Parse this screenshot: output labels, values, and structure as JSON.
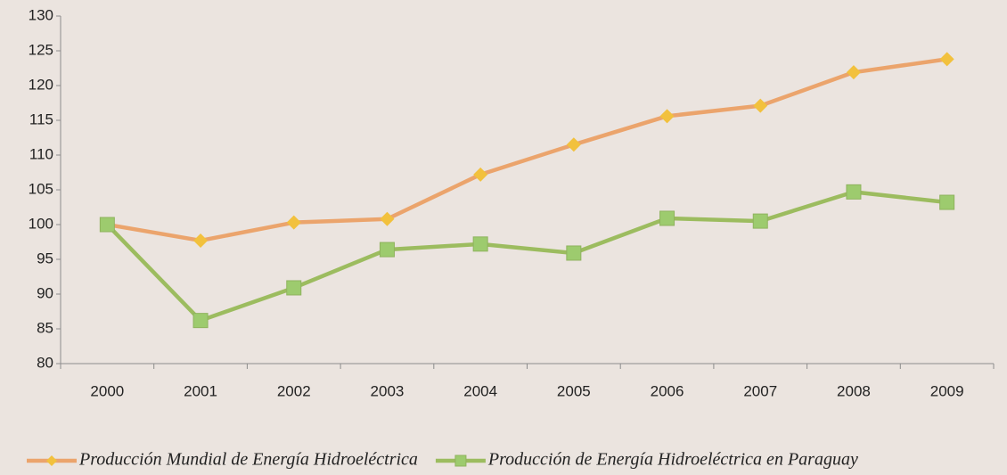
{
  "chart_data": {
    "type": "line",
    "categories": [
      "2000",
      "2001",
      "2002",
      "2003",
      "2004",
      "2005",
      "2006",
      "2007",
      "2008",
      "2009"
    ],
    "series": [
      {
        "name": "Producción Mundial de Energía Hidroeléctrica",
        "color": "#eba46c",
        "marker_color": "#f2c13d",
        "marker": "diamond",
        "values": [
          100,
          97.7,
          100.3,
          100.8,
          107.2,
          111.5,
          115.6,
          117.1,
          121.9,
          123.8
        ]
      },
      {
        "name": "Producción de Energía Hidroeléctrica en Paraguay",
        "color": "#9cbc5f",
        "marker_color": "#9dcb6e",
        "marker": "square",
        "values": [
          100,
          86.2,
          90.9,
          96.4,
          97.2,
          95.9,
          100.9,
          100.5,
          104.7,
          103.2
        ]
      }
    ],
    "ylim": [
      80,
      130
    ],
    "yticks": [
      80,
      85,
      90,
      95,
      100,
      105,
      110,
      115,
      120,
      125,
      130
    ],
    "grid": false,
    "legend": "bottom"
  }
}
